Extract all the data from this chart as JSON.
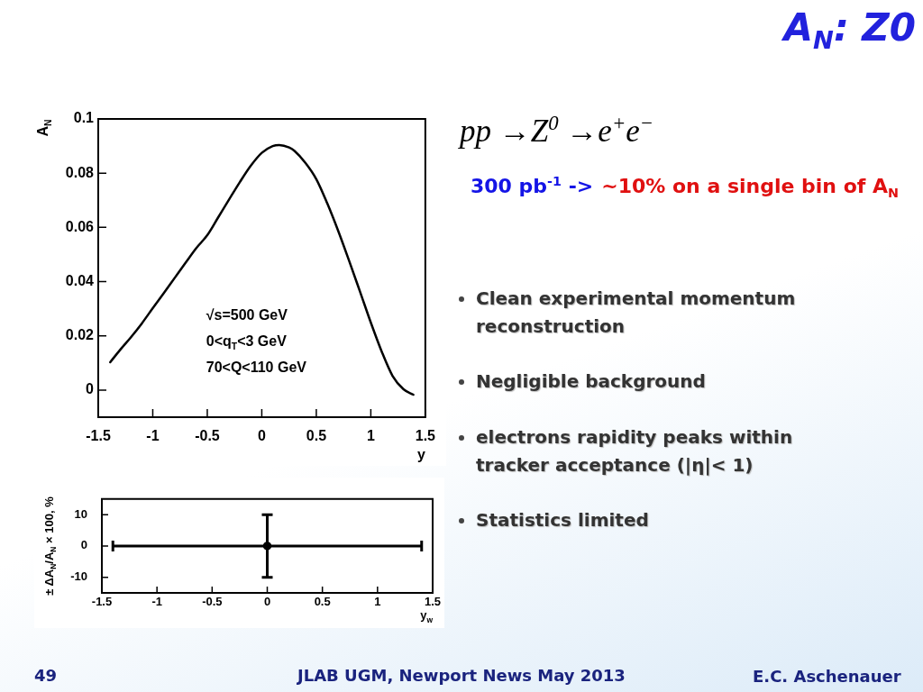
{
  "chart_data": [
    {
      "type": "line",
      "xlabel": "y",
      "ylabel": "A$_{N}$",
      "x": [
        -1.39,
        -1.3,
        -1.2,
        -1.1,
        -1.0,
        -0.9,
        -0.8,
        -0.7,
        -0.6,
        -0.5,
        -0.4,
        -0.3,
        -0.2,
        -0.1,
        0,
        0.1,
        0.16,
        0.25,
        0.3,
        0.4,
        0.5,
        0.6,
        0.7,
        0.8,
        0.9,
        1.0,
        1.1,
        1.2,
        1.3,
        1.39
      ],
      "values": [
        0.0103,
        0.0148,
        0.0195,
        0.0246,
        0.0302,
        0.0357,
        0.0413,
        0.0469,
        0.0524,
        0.0571,
        0.0637,
        0.0703,
        0.0768,
        0.0828,
        0.0875,
        0.09,
        0.0904,
        0.0895,
        0.0882,
        0.0838,
        0.0778,
        0.0689,
        0.0588,
        0.0478,
        0.0364,
        0.0249,
        0.0142,
        0.0052,
        0.0003,
        -0.0017
      ],
      "color": "#000000",
      "marker": "none",
      "xlim": [
        -1.5,
        1.5
      ],
      "xticks": [
        -1.5,
        -1,
        -0.5,
        0,
        0.5,
        1,
        1.5
      ],
      "ylim": [
        -0.01,
        0.1
      ],
      "yticks": [
        0,
        0.02,
        0.04,
        0.06,
        0.08,
        0.1
      ],
      "annotations": [
        "√s=500 GeV",
        "0<q$_{T}$<3 GeV",
        "70<Q<110 GeV"
      ]
    },
    {
      "type": "scatter",
      "xlabel": "y$_{w}$",
      "ylabel": "± ΔA$_{N}$/A$_{N}$ × 100, %",
      "x": [
        0
      ],
      "values": [
        0
      ],
      "errors": [
        10
      ],
      "xerrors": [
        1.4
      ],
      "color": "#000000",
      "marker": "circle",
      "xlim": [
        -1.5,
        1.5
      ],
      "xticks": [
        -1.5,
        -1,
        -0.5,
        0,
        0.5,
        1,
        1.5
      ],
      "ylim": [
        -15,
        15
      ],
      "yticks": [
        -10,
        0,
        10
      ]
    },
    {
      "type": "other",
      "title": "A$_{N}$: Z0",
      "annotations": [
        "pp →Z$^{0}$ →e$^{+}$e$^{−}$",
        "300 pb$^{-1}$ ->",
        "~10% on a single bin of A$_{N}$",
        "Clean experimental momentum reconstruction",
        "Negligible background",
        "electrons rapidity peaks within tracker acceptance (|η|< 1)",
        "Statistics limited",
        "49",
        "JLAB UGM, Newport News May 2013",
        "E.C. Aschenauer"
      ]
    }
  ]
}
